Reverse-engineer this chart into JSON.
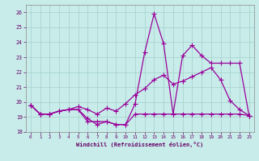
{
  "xlabel": "Windchill (Refroidissement éolien,°C)",
  "bg_color": "#c8ecea",
  "grid_color": "#a8d4d0",
  "line_color": "#990099",
  "ylim": [
    18,
    26.5
  ],
  "xlim": [
    -0.5,
    23.5
  ],
  "yticks": [
    18,
    19,
    20,
    21,
    22,
    23,
    24,
    25,
    26
  ],
  "xticks": [
    0,
    1,
    2,
    3,
    4,
    5,
    6,
    7,
    8,
    9,
    10,
    11,
    12,
    13,
    14,
    15,
    16,
    17,
    18,
    19,
    20,
    21,
    22,
    23
  ],
  "s1_x": [
    0,
    1,
    2,
    3,
    4,
    5,
    6,
    7,
    8,
    9,
    10,
    11,
    12,
    13,
    14,
    15,
    16,
    17,
    18,
    19,
    20,
    21,
    22,
    23
  ],
  "s1_y": [
    19.8,
    19.2,
    19.2,
    19.4,
    19.5,
    19.5,
    18.7,
    18.7,
    18.7,
    18.5,
    18.5,
    19.9,
    23.3,
    25.9,
    23.9,
    19.2,
    23.1,
    23.8,
    23.1,
    22.6,
    22.6,
    22.6,
    22.6,
    19.1
  ],
  "s2_x": [
    0,
    1,
    2,
    3,
    4,
    5,
    6,
    7,
    8,
    9,
    10,
    11,
    12,
    13,
    14,
    15,
    16,
    17,
    18,
    19,
    20,
    21,
    22,
    23
  ],
  "s2_y": [
    19.8,
    19.2,
    19.2,
    19.4,
    19.5,
    19.5,
    18.9,
    18.5,
    18.7,
    18.5,
    18.5,
    19.2,
    19.2,
    19.2,
    19.2,
    19.2,
    19.2,
    19.2,
    19.2,
    19.2,
    19.2,
    19.2,
    19.2,
    19.1
  ],
  "s3_x": [
    0,
    1,
    2,
    3,
    4,
    5,
    6,
    7,
    8,
    9,
    10,
    11,
    12,
    13,
    14,
    15,
    16,
    17,
    18,
    19,
    20,
    21,
    22,
    23
  ],
  "s3_y": [
    19.8,
    19.2,
    19.2,
    19.4,
    19.5,
    19.7,
    19.5,
    19.2,
    19.6,
    19.4,
    19.9,
    20.5,
    20.9,
    21.5,
    21.8,
    21.2,
    21.4,
    21.7,
    22.0,
    22.3,
    21.5,
    20.1,
    19.5,
    19.1
  ]
}
